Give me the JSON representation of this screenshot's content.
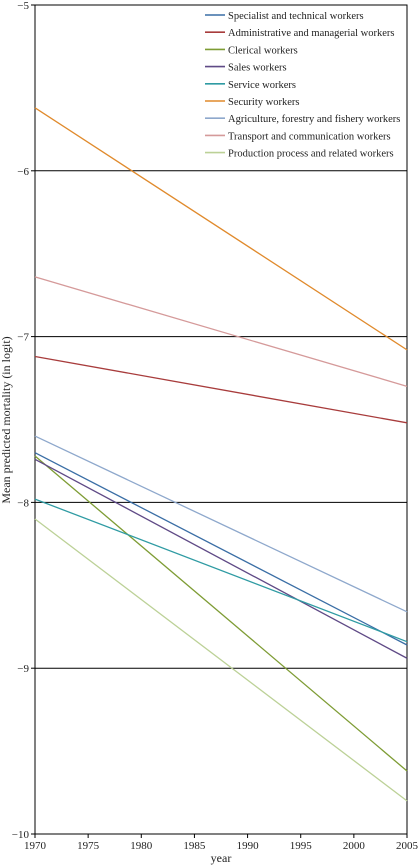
{
  "chart_data": {
    "type": "line",
    "title": "",
    "xlabel": "year",
    "ylabel": "Mean predicted mortality (in logit)",
    "xlim": [
      1970,
      2005
    ],
    "ylim": [
      -10,
      -5
    ],
    "xticks": [
      "1970",
      "1975",
      "1980",
      "1985",
      "1990",
      "1995",
      "2000",
      "2005"
    ],
    "yticks": [
      "−5",
      "−6",
      "−7",
      "−8",
      "−9",
      "−10"
    ],
    "grid": "horizontal lines at -6, -7, -8, -9",
    "legend_position": "top-right",
    "series": [
      {
        "name": "Specialist and technical workers",
        "color": "#3a6ea5",
        "x": [
          1970,
          2005
        ],
        "y": [
          -7.7,
          -8.86
        ]
      },
      {
        "name": "Administrative and managerial workers",
        "color": "#a83c3c",
        "x": [
          1970,
          2005
        ],
        "y": [
          -7.12,
          -7.52
        ]
      },
      {
        "name": "Clerical workers",
        "color": "#7e9c34",
        "x": [
          1970,
          2005
        ],
        "y": [
          -7.72,
          -9.62
        ]
      },
      {
        "name": "Sales workers",
        "color": "#5f4a86",
        "x": [
          1970,
          2005
        ],
        "y": [
          -7.74,
          -8.94
        ]
      },
      {
        "name": "Service workers",
        "color": "#2f9ba3",
        "x": [
          1970,
          2005
        ],
        "y": [
          -7.98,
          -8.84
        ]
      },
      {
        "name": "Security workers",
        "color": "#e08a2c",
        "x": [
          1970,
          2005
        ],
        "y": [
          -5.62,
          -7.08
        ]
      },
      {
        "name": "Agriculture, forestry and fishery workers",
        "color": "#8ea8cc",
        "x": [
          1970,
          2005
        ],
        "y": [
          -7.6,
          -8.66
        ]
      },
      {
        "name": "Transport and communication workers",
        "color": "#d59a9a",
        "x": [
          1970,
          2005
        ],
        "y": [
          -6.64,
          -7.3
        ]
      },
      {
        "name": "Production process and related workers",
        "color": "#bcd197",
        "x": [
          1970,
          2005
        ],
        "y": [
          -8.1,
          -9.8
        ]
      }
    ]
  }
}
